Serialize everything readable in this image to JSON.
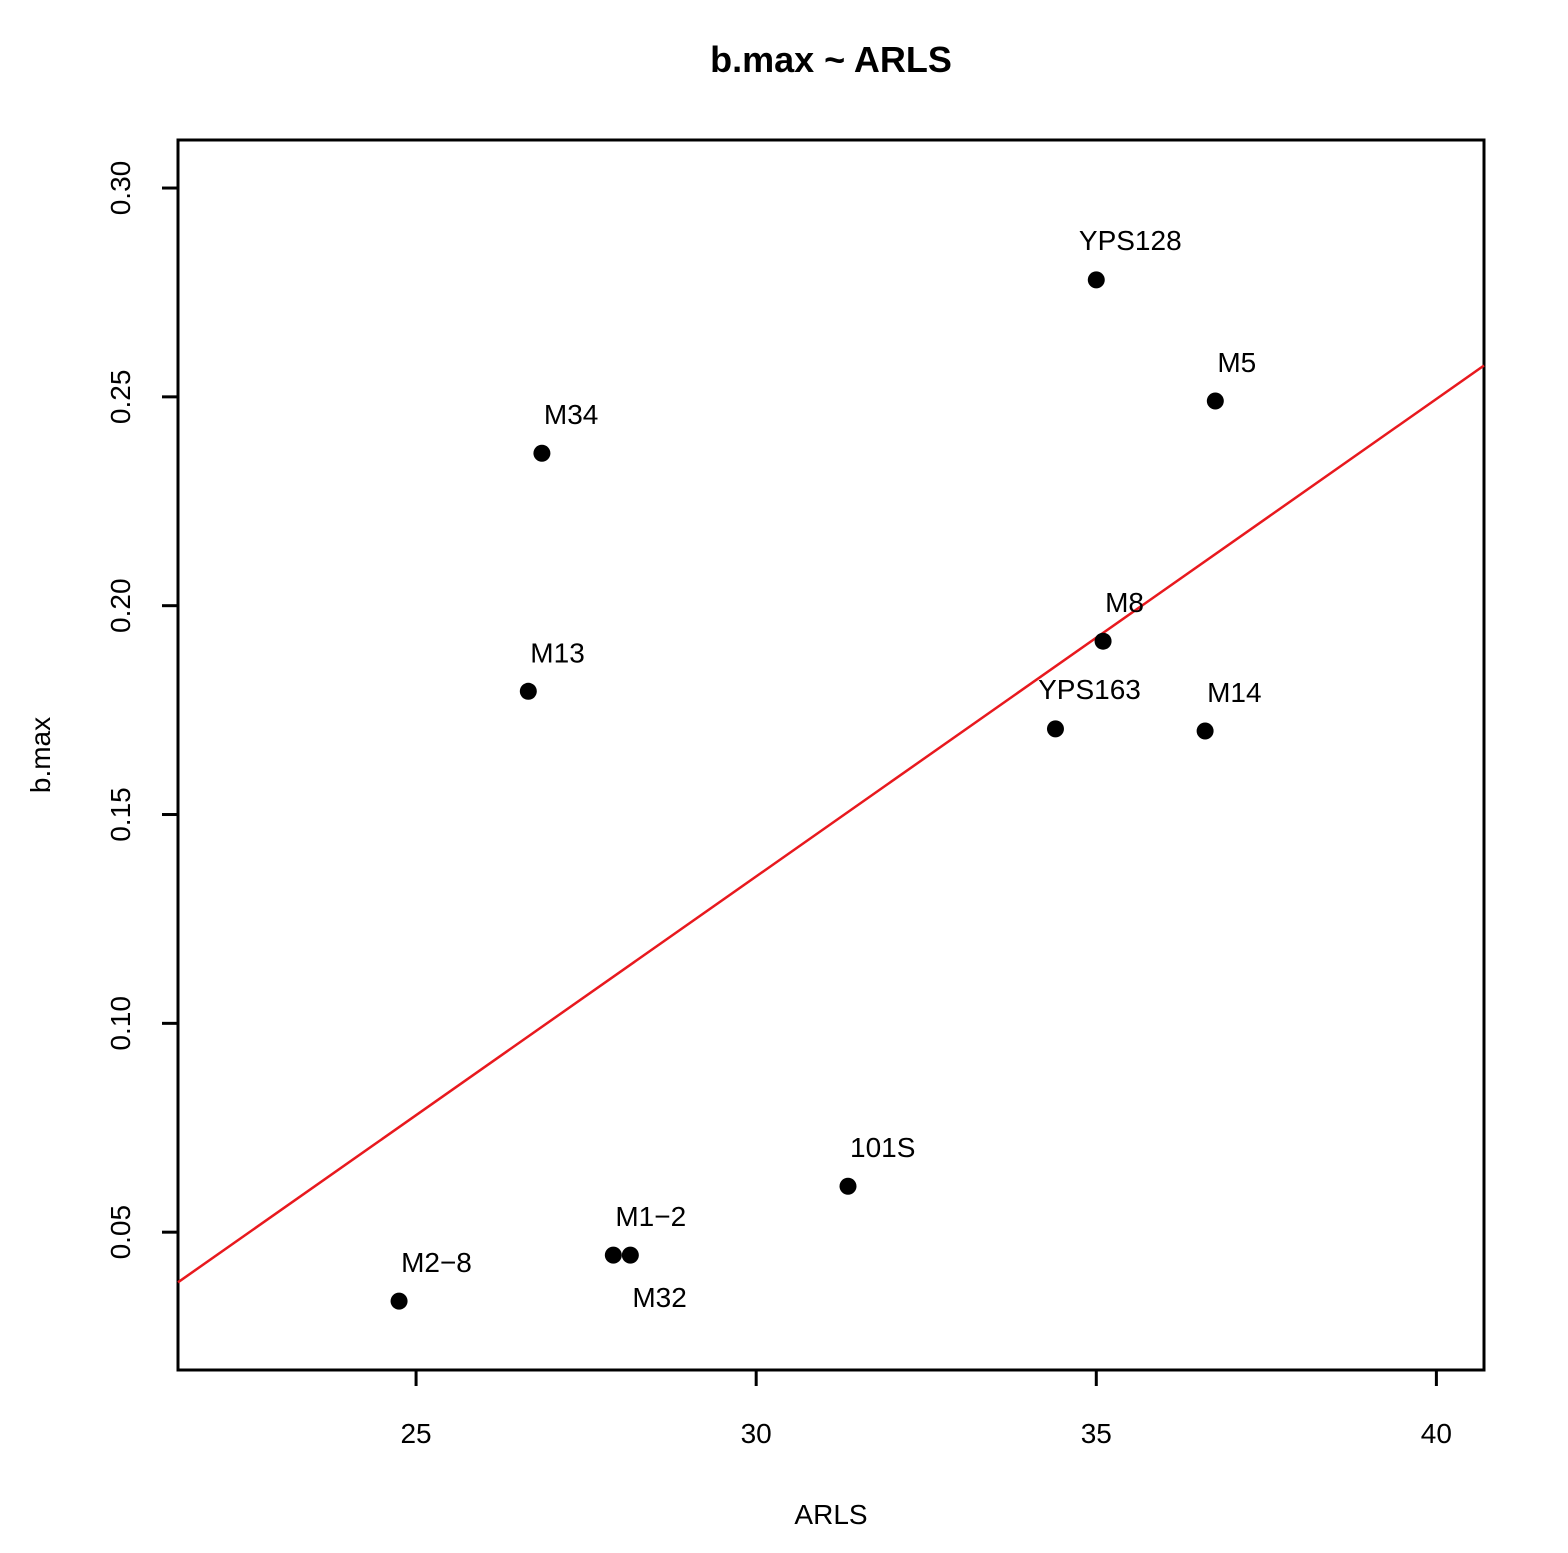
{
  "chart_data": {
    "type": "scatter",
    "title": "b.max ~ ARLS",
    "xlabel": "ARLS",
    "ylabel": "b.max",
    "xlim": [
      21.5,
      40.7
    ],
    "ylim": [
      0.017,
      0.3115
    ],
    "xticks": [
      25,
      30,
      35,
      40
    ],
    "xtick_labels": [
      "25",
      "30",
      "35",
      "40"
    ],
    "yticks": [
      0.05,
      0.1,
      0.15,
      0.2,
      0.25,
      0.3
    ],
    "ytick_labels": [
      "0.05",
      "0.10",
      "0.15",
      "0.20",
      "0.25",
      "0.30"
    ],
    "grid": false,
    "point_color": "#000000",
    "line_color": "#e8191e",
    "points": [
      {
        "label": "YPS128",
        "x": 35.0,
        "y": 0.278,
        "label_pos": "above"
      },
      {
        "label": "M5",
        "x": 36.75,
        "y": 0.249,
        "label_pos": "above-right"
      },
      {
        "label": "M34",
        "x": 26.85,
        "y": 0.2365,
        "label_pos": "above-right"
      },
      {
        "label": "M8",
        "x": 35.1,
        "y": 0.1915,
        "label_pos": "above-right"
      },
      {
        "label": "M13",
        "x": 26.65,
        "y": 0.1795,
        "label_pos": "above-right"
      },
      {
        "label": "YPS163",
        "x": 34.4,
        "y": 0.1705,
        "label_pos": "above"
      },
      {
        "label": "M14",
        "x": 36.6,
        "y": 0.17,
        "label_pos": "above-right"
      },
      {
        "label": "101S",
        "x": 31.35,
        "y": 0.061,
        "label_pos": "above-right"
      },
      {
        "label": "M1−2",
        "x": 27.9,
        "y": 0.0445,
        "label_pos": "above-right"
      },
      {
        "label": "M32",
        "x": 28.15,
        "y": 0.0445,
        "label_pos": "below-right"
      },
      {
        "label": "M2−8",
        "x": 24.75,
        "y": 0.0335,
        "label_pos": "above-right"
      }
    ],
    "regression_line": {
      "x": [
        21.5,
        40.7
      ],
      "y": [
        0.038,
        0.2575
      ]
    }
  }
}
